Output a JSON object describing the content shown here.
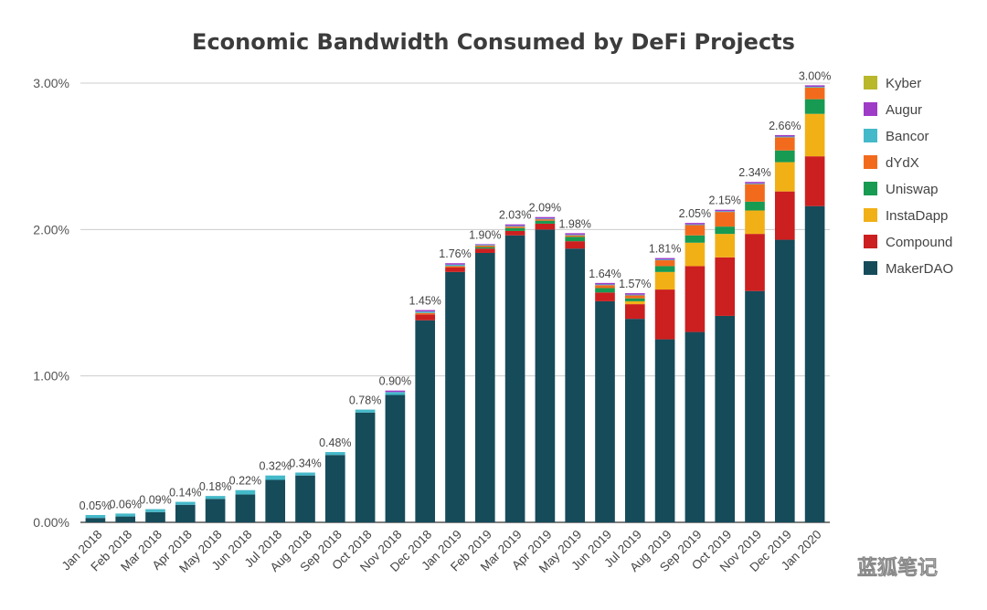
{
  "chart_data": {
    "type": "bar",
    "stacked": true,
    "title": "Economic Bandwidth Consumed by DeFi Projects",
    "xlabel": "",
    "ylabel": "",
    "ylim": [
      0,
      3.0
    ],
    "y_ticks": [
      0,
      1,
      2,
      3
    ],
    "y_tick_labels": [
      "0.00%",
      "1.00%",
      "2.00%",
      "3.00%"
    ],
    "grid": true,
    "legend_position": "right",
    "categories": [
      "Jan 2018",
      "Feb 2018",
      "Mar 2018",
      "Apr 2018",
      "May 2018",
      "Jun 2018",
      "Jul 2018",
      "Aug 2018",
      "Sep 2018",
      "Oct 2018",
      "Nov 2018",
      "Dec 2018",
      "Jan 2019",
      "Feb 2019",
      "Mar 2019",
      "Apr 2019",
      "May 2019",
      "Jun 2019",
      "Jul 2019",
      "Aug 2019",
      "Sep 2019",
      "Oct 2019",
      "Nov 2019",
      "Dec 2019",
      "Jan 2020"
    ],
    "totals": [
      "0.05%",
      "0.06%",
      "0.09%",
      "0.14%",
      "0.18%",
      "0.22%",
      "0.32%",
      "0.34%",
      "0.48%",
      "0.78%",
      "0.90%",
      "1.45%",
      "1.76%",
      "1.90%",
      "2.03%",
      "2.09%",
      "1.98%",
      "1.64%",
      "1.57%",
      "1.81%",
      "2.05%",
      "2.15%",
      "2.34%",
      "2.66%",
      "3.00%"
    ],
    "series": [
      {
        "name": "MakerDAO",
        "color": "#164b5a",
        "values": [
          0.03,
          0.04,
          0.07,
          0.12,
          0.16,
          0.19,
          0.29,
          0.32,
          0.46,
          0.75,
          0.87,
          1.38,
          1.71,
          1.84,
          1.96,
          2.0,
          1.87,
          1.51,
          1.39,
          1.25,
          1.3,
          1.41,
          1.58,
          1.93,
          2.16
        ]
      },
      {
        "name": "Compound",
        "color": "#cc1f1f",
        "values": [
          0,
          0,
          0,
          0,
          0,
          0,
          0,
          0,
          0,
          0,
          0,
          0.04,
          0.03,
          0.03,
          0.03,
          0.04,
          0.05,
          0.06,
          0.1,
          0.34,
          0.45,
          0.4,
          0.39,
          0.33,
          0.34
        ]
      },
      {
        "name": "InstaDapp",
        "color": "#f2b017",
        "values": [
          0,
          0,
          0,
          0,
          0,
          0,
          0,
          0,
          0,
          0,
          0,
          0,
          0,
          0,
          0,
          0,
          0,
          0,
          0.02,
          0.12,
          0.16,
          0.16,
          0.16,
          0.2,
          0.29
        ]
      },
      {
        "name": "Uniswap",
        "color": "#179a52",
        "values": [
          0,
          0,
          0,
          0,
          0,
          0,
          0,
          0,
          0,
          0,
          0,
          0,
          0,
          0.01,
          0.02,
          0.02,
          0.03,
          0.03,
          0.02,
          0.04,
          0.05,
          0.05,
          0.06,
          0.08,
          0.1
        ]
      },
      {
        "name": "dYdX",
        "color": "#f26b1d",
        "values": [
          0,
          0,
          0,
          0,
          0,
          0,
          0,
          0,
          0,
          0,
          0,
          0.01,
          0.01,
          0.01,
          0.01,
          0.01,
          0.01,
          0.02,
          0.02,
          0.04,
          0.07,
          0.1,
          0.12,
          0.09,
          0.08
        ]
      },
      {
        "name": "Bancor",
        "color": "#44b9c9",
        "values": [
          0.02,
          0.02,
          0.02,
          0.02,
          0.02,
          0.03,
          0.03,
          0.02,
          0.02,
          0.02,
          0.02,
          0.01,
          0.01,
          0.005,
          0.005,
          0.005,
          0.005,
          0.005,
          0.005,
          0.005,
          0.005,
          0.005,
          0.005,
          0.005,
          0.005
        ]
      },
      {
        "name": "Augur",
        "color": "#9e3bc7",
        "values": [
          0,
          0,
          0,
          0,
          0,
          0,
          0,
          0,
          0,
          0,
          0.01,
          0.01,
          0.01,
          0.005,
          0.01,
          0.01,
          0.01,
          0.01,
          0.01,
          0.01,
          0.01,
          0.01,
          0.01,
          0.01,
          0.01
        ]
      },
      {
        "name": "Kyber",
        "color": "#b9b72a",
        "values": [
          0,
          0,
          0,
          0,
          0,
          0,
          0,
          0,
          0,
          0,
          0,
          0,
          0,
          0,
          0,
          0,
          0,
          0,
          0,
          0,
          0,
          0,
          0,
          0,
          0
        ]
      }
    ],
    "legend": [
      "Kyber",
      "Augur",
      "Bancor",
      "dYdX",
      "Uniswap",
      "InstaDapp",
      "Compound",
      "MakerDAO"
    ]
  },
  "watermark": {
    "text": "蓝狐笔记",
    "icon": "wechat-icon"
  }
}
